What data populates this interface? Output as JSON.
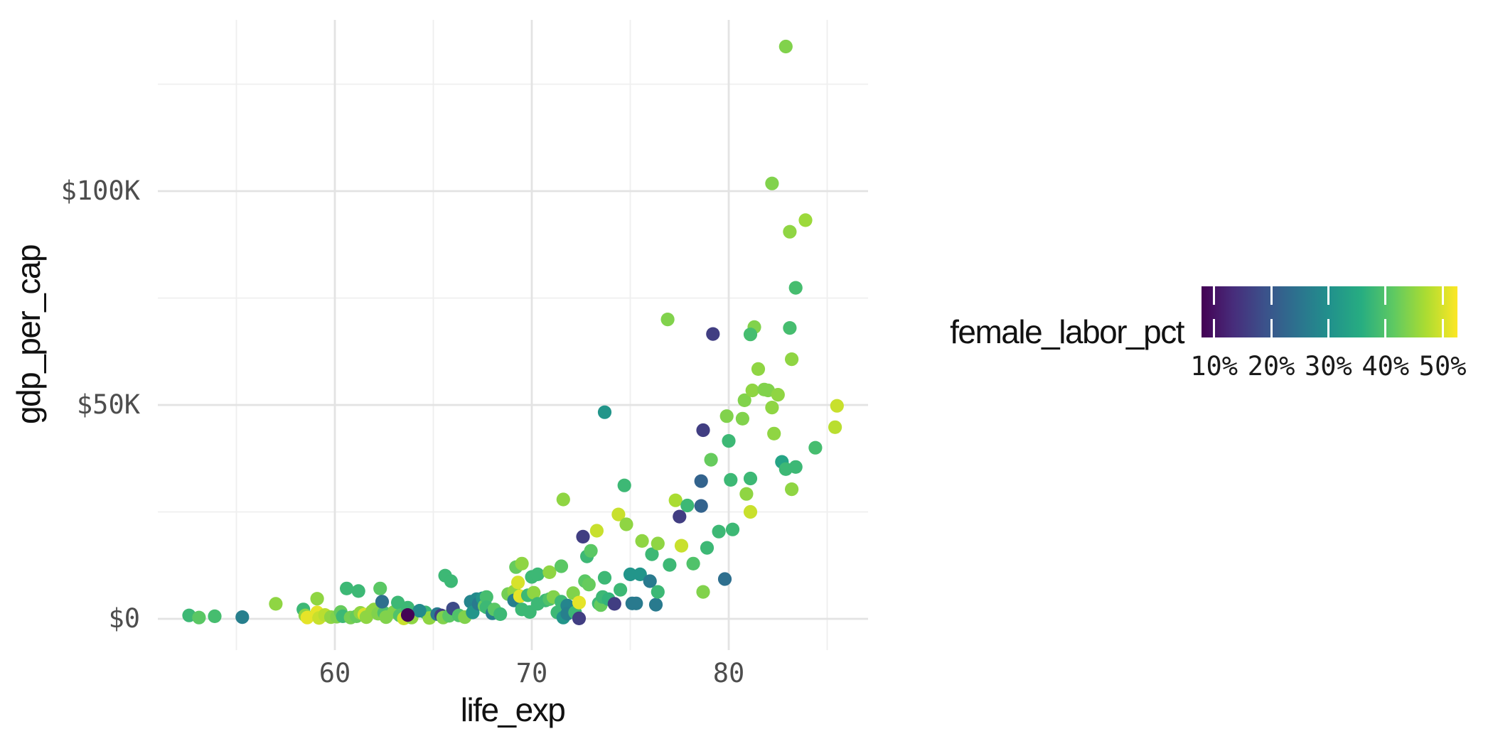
{
  "chart_data": {
    "type": "scatter",
    "title": "",
    "xlabel": "life_exp",
    "ylabel": "gdp_per_cap",
    "grid": "on",
    "x_axis": {
      "range": [
        51.3,
        86.9
      ],
      "major_ticks": [
        {
          "value": 60,
          "label": "60"
        },
        {
          "value": 70,
          "label": "70"
        },
        {
          "value": 80,
          "label": "80"
        }
      ],
      "minor_ticks": [
        55,
        65,
        75,
        85
      ]
    },
    "y_axis": {
      "unit": "thousand_usd",
      "range_k": [
        -7.5,
        140
      ],
      "major_ticks": [
        {
          "value": 0,
          "label": "$0"
        },
        {
          "value": 50,
          "label": "$50K"
        },
        {
          "value": 100,
          "label": "$100K"
        }
      ],
      "minor_ticks": [
        25,
        75,
        125
      ]
    },
    "legend": {
      "title": "female_labor_pct",
      "position": "right",
      "domain": [
        7.8,
        52.6
      ],
      "ticks": [
        {
          "value": 10,
          "label": "10%"
        },
        {
          "value": 20,
          "label": "20%"
        },
        {
          "value": 30,
          "label": "30%"
        },
        {
          "value": 40,
          "label": "40%"
        },
        {
          "value": 50,
          "label": "50%"
        }
      ]
    },
    "color_scale": {
      "name": "viridis",
      "stops": [
        "#440154",
        "#472d7b",
        "#3b528b",
        "#2c728e",
        "#21918c",
        "#27ad81",
        "#5ec962",
        "#aadc32",
        "#fde725"
      ]
    },
    "point_style": {
      "radius_px": 9.6,
      "shape": "circle"
    },
    "points_format": [
      "life_exp",
      "gdp_per_cap_k",
      "female_labor_pct"
    ],
    "points": [
      [
        52.6,
        0.8,
        38
      ],
      [
        53.1,
        0.3,
        41
      ],
      [
        53.9,
        0.6,
        39
      ],
      [
        55.3,
        0.4,
        27
      ],
      [
        57.0,
        3.5,
        45
      ],
      [
        58.4,
        2.2,
        38
      ],
      [
        58.5,
        0.8,
        45
      ],
      [
        58.6,
        0.3,
        51
      ],
      [
        59.1,
        4.7,
        45
      ],
      [
        59.1,
        1.5,
        51
      ],
      [
        59.2,
        0.2,
        49
      ],
      [
        59.5,
        0.9,
        48
      ],
      [
        59.8,
        0.4,
        45
      ],
      [
        60.1,
        0.5,
        44
      ],
      [
        60.3,
        1.6,
        42
      ],
      [
        60.4,
        0.6,
        38
      ],
      [
        60.6,
        7.1,
        38
      ],
      [
        60.8,
        0.3,
        43
      ],
      [
        61.1,
        0.6,
        42
      ],
      [
        61.2,
        6.5,
        38
      ],
      [
        61.3,
        1.4,
        45
      ],
      [
        61.5,
        1.0,
        50
      ],
      [
        61.6,
        0.4,
        45
      ],
      [
        61.9,
        1.8,
        45
      ],
      [
        62.0,
        2.2,
        45
      ],
      [
        62.2,
        1.2,
        44
      ],
      [
        62.3,
        7.1,
        41
      ],
      [
        62.5,
        1.4,
        40
      ],
      [
        62.6,
        0.4,
        44
      ],
      [
        63.0,
        1.6,
        44
      ],
      [
        63.2,
        3.8,
        38
      ],
      [
        63.3,
        0.8,
        40
      ],
      [
        63.5,
        0.1,
        49
      ],
      [
        63.7,
        2.6,
        38
      ],
      [
        63.9,
        0.3,
        45
      ],
      [
        64.6,
        1.5,
        38
      ],
      [
        64.8,
        0.2,
        45
      ],
      [
        65.2,
        1.1,
        26
      ],
      [
        65.4,
        0.8,
        16
      ],
      [
        65.5,
        0.3,
        44
      ],
      [
        65.6,
        10.1,
        38
      ],
      [
        65.8,
        0.7,
        41
      ],
      [
        65.9,
        8.8,
        38
      ],
      [
        66.0,
        2.4,
        18
      ],
      [
        66.3,
        0.8,
        40
      ],
      [
        66.6,
        0.4,
        44
      ],
      [
        66.9,
        4.0,
        28
      ],
      [
        67.0,
        1.5,
        31
      ],
      [
        67.2,
        4.6,
        29
      ],
      [
        67.3,
        3.5,
        26
      ],
      [
        67.5,
        4.8,
        31
      ],
      [
        67.6,
        3.0,
        42
      ],
      [
        67.7,
        5.1,
        39
      ],
      [
        67.7,
        2.7,
        38
      ],
      [
        68.0,
        1.3,
        27
      ],
      [
        68.1,
        2.2,
        41
      ],
      [
        68.4,
        1.1,
        38
      ],
      [
        68.8,
        5.8,
        43
      ],
      [
        69.1,
        6.4,
        45
      ],
      [
        69.1,
        4.3,
        27
      ],
      [
        69.2,
        12.1,
        42
      ],
      [
        69.3,
        8.5,
        50
      ],
      [
        69.4,
        5.3,
        51
      ],
      [
        69.5,
        12.9,
        45
      ],
      [
        69.5,
        2.2,
        38
      ],
      [
        69.8,
        5.5,
        38
      ],
      [
        69.9,
        1.6,
        38
      ],
      [
        70.0,
        9.8,
        38
      ],
      [
        70.1,
        6.1,
        45
      ],
      [
        70.3,
        10.4,
        38
      ],
      [
        70.3,
        3.5,
        38
      ],
      [
        70.7,
        4.3,
        38
      ],
      [
        70.9,
        4.6,
        40
      ],
      [
        70.9,
        10.9,
        45
      ],
      [
        71.1,
        5.1,
        44
      ],
      [
        71.3,
        1.5,
        38
      ],
      [
        71.5,
        12.3,
        41
      ],
      [
        71.5,
        4.0,
        38
      ],
      [
        71.6,
        27.9,
        45
      ],
      [
        71.6,
        0.3,
        31
      ],
      [
        71.8,
        3.1,
        28
      ],
      [
        71.8,
        1.2,
        27
      ],
      [
        72.1,
        6.0,
        44
      ],
      [
        72.2,
        1.5,
        38
      ],
      [
        72.4,
        3.8,
        51
      ],
      [
        72.4,
        0.1,
        16
      ],
      [
        72.7,
        8.8,
        41
      ],
      [
        72.8,
        14.6,
        38
      ],
      [
        72.9,
        8.0,
        42
      ],
      [
        73.0,
        15.9,
        41
      ],
      [
        73.3,
        20.6,
        49
      ],
      [
        73.4,
        3.6,
        38
      ],
      [
        73.5,
        3.2,
        42
      ],
      [
        73.6,
        5.1,
        38
      ],
      [
        73.7,
        48.3,
        31
      ],
      [
        73.7,
        9.6,
        38
      ],
      [
        73.9,
        4.6,
        37
      ],
      [
        74.2,
        3.5,
        16
      ],
      [
        74.4,
        24.4,
        49
      ],
      [
        74.5,
        6.8,
        38
      ],
      [
        74.7,
        31.2,
        38
      ],
      [
        74.8,
        22.1,
        45
      ],
      [
        75.0,
        10.4,
        31
      ],
      [
        75.1,
        3.6,
        26
      ],
      [
        75.3,
        3.6,
        26
      ],
      [
        75.5,
        10.4,
        31
      ],
      [
        75.6,
        18.2,
        45
      ],
      [
        76.0,
        8.8,
        26
      ],
      [
        76.1,
        15.1,
        38
      ],
      [
        76.3,
        3.3,
        26
      ],
      [
        76.4,
        17.6,
        45
      ],
      [
        76.4,
        6.3,
        38
      ],
      [
        76.9,
        70.0,
        44
      ],
      [
        77.0,
        12.6,
        38
      ],
      [
        77.3,
        27.7,
        47
      ],
      [
        77.6,
        17.1,
        49
      ],
      [
        77.9,
        26.5,
        38
      ],
      [
        78.2,
        12.9,
        40
      ],
      [
        78.7,
        6.3,
        44
      ],
      [
        78.9,
        16.6,
        38
      ],
      [
        79.1,
        37.2,
        42
      ],
      [
        79.5,
        20.4,
        38
      ],
      [
        79.9,
        47.4,
        44
      ],
      [
        80.0,
        41.6,
        38
      ],
      [
        80.1,
        32.5,
        38
      ],
      [
        80.2,
        20.9,
        38
      ],
      [
        80.7,
        46.8,
        44
      ],
      [
        80.8,
        51.1,
        44
      ],
      [
        80.9,
        29.2,
        45
      ],
      [
        81.1,
        32.8,
        38
      ],
      [
        81.1,
        25.0,
        49
      ],
      [
        81.2,
        53.4,
        45
      ],
      [
        81.3,
        68.2,
        44
      ],
      [
        81.1,
        66.5,
        39
      ],
      [
        81.5,
        58.4,
        45
      ],
      [
        81.8,
        53.6,
        44
      ],
      [
        82.0,
        53.4,
        44
      ],
      [
        82.2,
        49.4,
        45
      ],
      [
        82.2,
        101.8,
        44
      ],
      [
        82.3,
        43.3,
        45
      ],
      [
        82.5,
        52.4,
        45
      ],
      [
        82.7,
        36.7,
        34
      ],
      [
        82.9,
        35.0,
        38
      ],
      [
        82.9,
        133.8,
        44
      ],
      [
        83.1,
        90.5,
        45
      ],
      [
        83.1,
        68.0,
        39
      ],
      [
        83.2,
        60.7,
        45
      ],
      [
        83.2,
        30.3,
        45
      ],
      [
        83.4,
        77.4,
        39
      ],
      [
        83.4,
        35.5,
        38
      ],
      [
        83.9,
        93.2,
        46
      ],
      [
        84.4,
        40.0,
        39
      ],
      [
        85.4,
        44.8,
        48
      ],
      [
        85.5,
        49.8,
        49
      ],
      [
        62.4,
        4.0,
        24
      ],
      [
        64.3,
        1.9,
        29
      ],
      [
        63.7,
        0.9,
        8
      ],
      [
        72.6,
        19.2,
        16
      ],
      [
        77.5,
        23.9,
        16
      ],
      [
        78.6,
        32.2,
        22
      ],
      [
        78.6,
        26.4,
        22
      ],
      [
        78.7,
        44.1,
        16
      ],
      [
        79.2,
        66.6,
        16
      ],
      [
        79.8,
        9.3,
        24
      ]
    ]
  }
}
